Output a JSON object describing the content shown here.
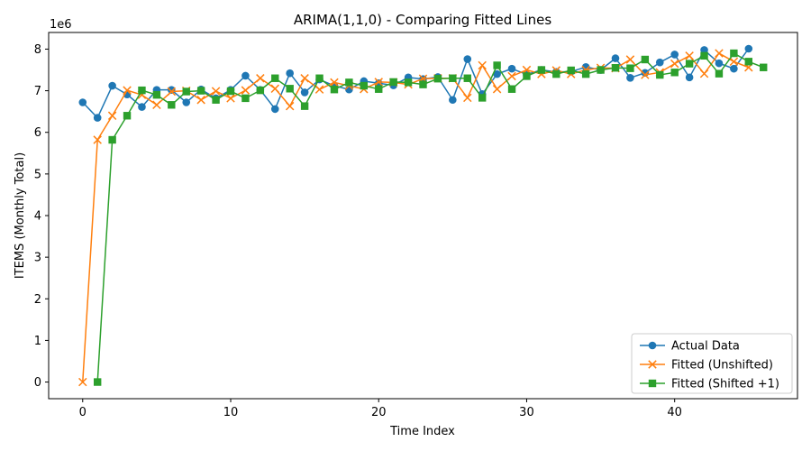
{
  "chart_data": {
    "type": "line",
    "title": "ARIMA(1,1,0) - Comparing Fitted Lines",
    "xlabel": "Time Index",
    "ylabel": "ITEMS (Monthly Total)",
    "y_offset_label": "1e6",
    "xlim": [
      -2.3,
      48.3
    ],
    "ylim": [
      -0.4,
      8.4
    ],
    "x_ticks": [
      0,
      10,
      20,
      30,
      40
    ],
    "y_ticks": [
      0,
      1,
      2,
      3,
      4,
      5,
      6,
      7,
      8
    ],
    "grid": false,
    "legend_position": "lower-right",
    "series": [
      {
        "name": "Actual Data",
        "marker": "circle",
        "color": "#1f77b4",
        "x": [
          0,
          1,
          2,
          3,
          4,
          5,
          6,
          7,
          8,
          9,
          10,
          11,
          12,
          13,
          14,
          15,
          16,
          17,
          18,
          19,
          20,
          21,
          22,
          23,
          24,
          25,
          26,
          27,
          28,
          29,
          30,
          31,
          32,
          33,
          34,
          35,
          36,
          37,
          38,
          39,
          40,
          41,
          42,
          43,
          44,
          45
        ],
        "values": [
          6.72,
          6.35,
          7.12,
          6.91,
          6.61,
          7.02,
          7.02,
          6.72,
          7.03,
          6.82,
          7.02,
          7.36,
          7.02,
          6.56,
          7.42,
          6.96,
          7.27,
          7.12,
          7.03,
          7.23,
          7.18,
          7.13,
          7.32,
          7.28,
          7.33,
          6.78,
          7.76,
          6.92,
          7.4,
          7.53,
          7.39,
          7.5,
          7.45,
          7.46,
          7.57,
          7.5,
          7.78,
          7.31,
          7.43,
          7.68,
          7.87,
          7.32,
          7.98,
          7.66,
          7.53,
          8.01
        ]
      },
      {
        "name": "Fitted (Unshifted)",
        "marker": "x",
        "color": "#ff7f0e",
        "x": [
          0,
          1,
          2,
          3,
          4,
          5,
          6,
          7,
          8,
          9,
          10,
          11,
          12,
          13,
          14,
          15,
          16,
          17,
          18,
          19,
          20,
          21,
          22,
          23,
          24,
          25,
          26,
          27,
          28,
          29,
          30,
          31,
          32,
          33,
          34,
          35,
          36,
          37,
          38,
          39,
          40,
          41,
          42,
          43,
          44,
          45
        ],
        "values": [
          0.0,
          5.82,
          6.4,
          7.01,
          6.9,
          6.66,
          6.98,
          7.0,
          6.78,
          6.99,
          6.82,
          7.01,
          7.3,
          7.05,
          6.63,
          7.3,
          7.03,
          7.2,
          7.12,
          7.04,
          7.21,
          7.2,
          7.15,
          7.29,
          7.3,
          7.3,
          6.83,
          7.61,
          7.04,
          7.35,
          7.5,
          7.4,
          7.49,
          7.4,
          7.5,
          7.55,
          7.54,
          7.75,
          7.38,
          7.44,
          7.65,
          7.84,
          7.41,
          7.9,
          7.7,
          7.56
        ]
      },
      {
        "name": "Fitted (Shifted +1)",
        "marker": "square",
        "color": "#2ca02c",
        "x": [
          1,
          2,
          3,
          4,
          5,
          6,
          7,
          8,
          9,
          10,
          11,
          12,
          13,
          14,
          15,
          16,
          17,
          18,
          19,
          20,
          21,
          22,
          23,
          24,
          25,
          26,
          27,
          28,
          29,
          30,
          31,
          32,
          33,
          34,
          35,
          36,
          37,
          38,
          39,
          40,
          41,
          42,
          43,
          44,
          45,
          46
        ],
        "values": [
          0.0,
          5.82,
          6.4,
          7.01,
          6.9,
          6.66,
          6.98,
          7.0,
          6.78,
          6.99,
          6.82,
          7.01,
          7.3,
          7.05,
          6.63,
          7.3,
          7.03,
          7.2,
          7.12,
          7.04,
          7.21,
          7.2,
          7.15,
          7.29,
          7.3,
          7.3,
          6.83,
          7.61,
          7.04,
          7.35,
          7.5,
          7.4,
          7.49,
          7.4,
          7.5,
          7.55,
          7.54,
          7.75,
          7.38,
          7.44,
          7.65,
          7.84,
          7.41,
          7.9,
          7.7,
          7.56
        ]
      }
    ]
  }
}
